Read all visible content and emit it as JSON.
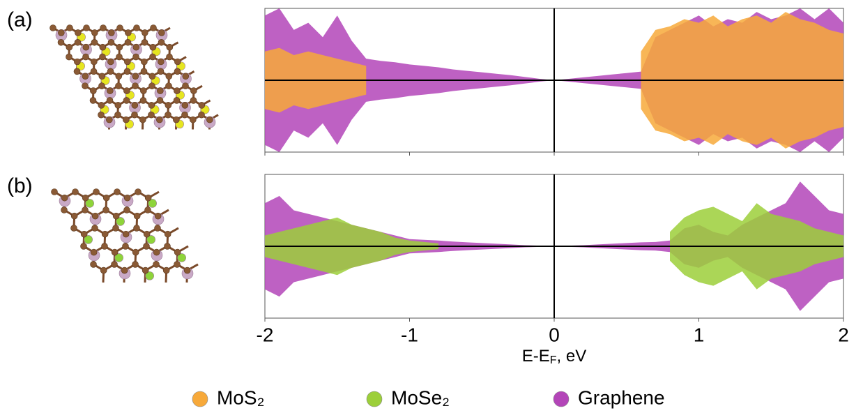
{
  "chart_data": [
    {
      "type": "band",
      "panel_label": "(a)",
      "x": [
        -2.0,
        -1.9,
        -1.8,
        -1.7,
        -1.6,
        -1.5,
        -1.4,
        -1.3,
        -1.2,
        -1.1,
        -1.0,
        -0.9,
        -0.8,
        -0.7,
        -0.6,
        -0.5,
        -0.4,
        -0.3,
        -0.2,
        -0.1,
        0,
        0.1,
        0.2,
        0.3,
        0.4,
        0.5,
        0.6,
        0.7,
        0.8,
        0.9,
        1.0,
        1.1,
        1.2,
        1.3,
        1.4,
        1.5,
        1.6,
        1.7,
        1.8,
        1.9,
        2.0
      ],
      "series": [
        {
          "color": "#b345b8",
          "values": [
            0.9,
            1.0,
            0.7,
            0.8,
            0.6,
            0.9,
            0.55,
            0.3,
            0.27,
            0.25,
            0.22,
            0.2,
            0.18,
            0.15,
            0.13,
            0.11,
            0.09,
            0.07,
            0.045,
            0.02,
            0,
            0.02,
            0.04,
            0.06,
            0.08,
            0.1,
            0.12,
            0.6,
            0.7,
            0.8,
            0.9,
            0.75,
            0.85,
            0.8,
            0.95,
            0.85,
            0.9,
            1.0,
            0.85,
            1.0,
            0.8
          ]
        },
        {
          "color": "#f7a93a",
          "values": [
            0.4,
            0.45,
            0.35,
            0.4,
            0.35,
            0.3,
            0.25,
            0.2,
            null,
            null,
            null,
            null,
            null,
            null,
            null,
            null,
            null,
            null,
            null,
            null,
            null,
            null,
            null,
            null,
            null,
            null,
            0.4,
            0.7,
            0.75,
            0.85,
            0.8,
            0.9,
            0.75,
            0.85,
            0.9,
            0.8,
            0.95,
            0.85,
            0.8,
            0.7,
            0.65
          ]
        }
      ],
      "xlim": [
        -2,
        2
      ],
      "ylim": [
        -1,
        1
      ],
      "xticks": [
        -2,
        -1,
        0,
        1,
        2
      ]
    },
    {
      "type": "band",
      "panel_label": "(b)",
      "x": [
        -2.0,
        -1.9,
        -1.8,
        -1.7,
        -1.6,
        -1.5,
        -1.4,
        -1.3,
        -1.2,
        -1.1,
        -1.0,
        -0.9,
        -0.8,
        -0.7,
        -0.6,
        -0.5,
        -0.4,
        -0.3,
        -0.2,
        -0.1,
        0,
        0.1,
        0.2,
        0.3,
        0.4,
        0.5,
        0.6,
        0.7,
        0.8,
        0.9,
        1.0,
        1.1,
        1.2,
        1.3,
        1.4,
        1.5,
        1.6,
        1.7,
        1.8,
        1.9,
        2.0
      ],
      "series": [
        {
          "color": "#b345b8",
          "values": [
            0.6,
            0.7,
            0.5,
            0.45,
            0.4,
            0.35,
            0.3,
            0.25,
            0.2,
            0.15,
            0.1,
            0.09,
            0.08,
            0.065,
            0.055,
            0.045,
            0.035,
            0.025,
            0.015,
            0.008,
            0,
            0.008,
            0.015,
            0.025,
            0.035,
            0.045,
            0.055,
            0.06,
            0.08,
            0.25,
            0.3,
            0.2,
            0.15,
            0.3,
            0.4,
            0.5,
            0.6,
            0.9,
            0.7,
            0.5,
            0.45
          ]
        },
        {
          "color": "#9ccf3a",
          "values": [
            0.15,
            0.2,
            0.25,
            0.3,
            0.35,
            0.4,
            0.3,
            0.25,
            0.2,
            0.12,
            0.08,
            0.06,
            0.04,
            null,
            null,
            null,
            null,
            null,
            null,
            null,
            null,
            null,
            null,
            null,
            null,
            null,
            null,
            null,
            0.2,
            0.4,
            0.5,
            0.55,
            0.45,
            0.35,
            0.6,
            0.45,
            0.4,
            0.35,
            0.25,
            0.2,
            0.15
          ]
        }
      ],
      "xlim": [
        -2,
        2
      ],
      "ylim": [
        -1,
        1
      ],
      "xticks": [
        -2,
        -1,
        0,
        1,
        2
      ],
      "xlabel": [
        "E-E",
        "F",
        ", eV"
      ]
    }
  ],
  "legend": {
    "items": [
      {
        "name": "MoS₂",
        "color": "#f7a93a"
      },
      {
        "name": "MoSe₂",
        "color": "#9ccf3a"
      },
      {
        "name": "Graphene",
        "color": "#b345b8"
      }
    ]
  }
}
